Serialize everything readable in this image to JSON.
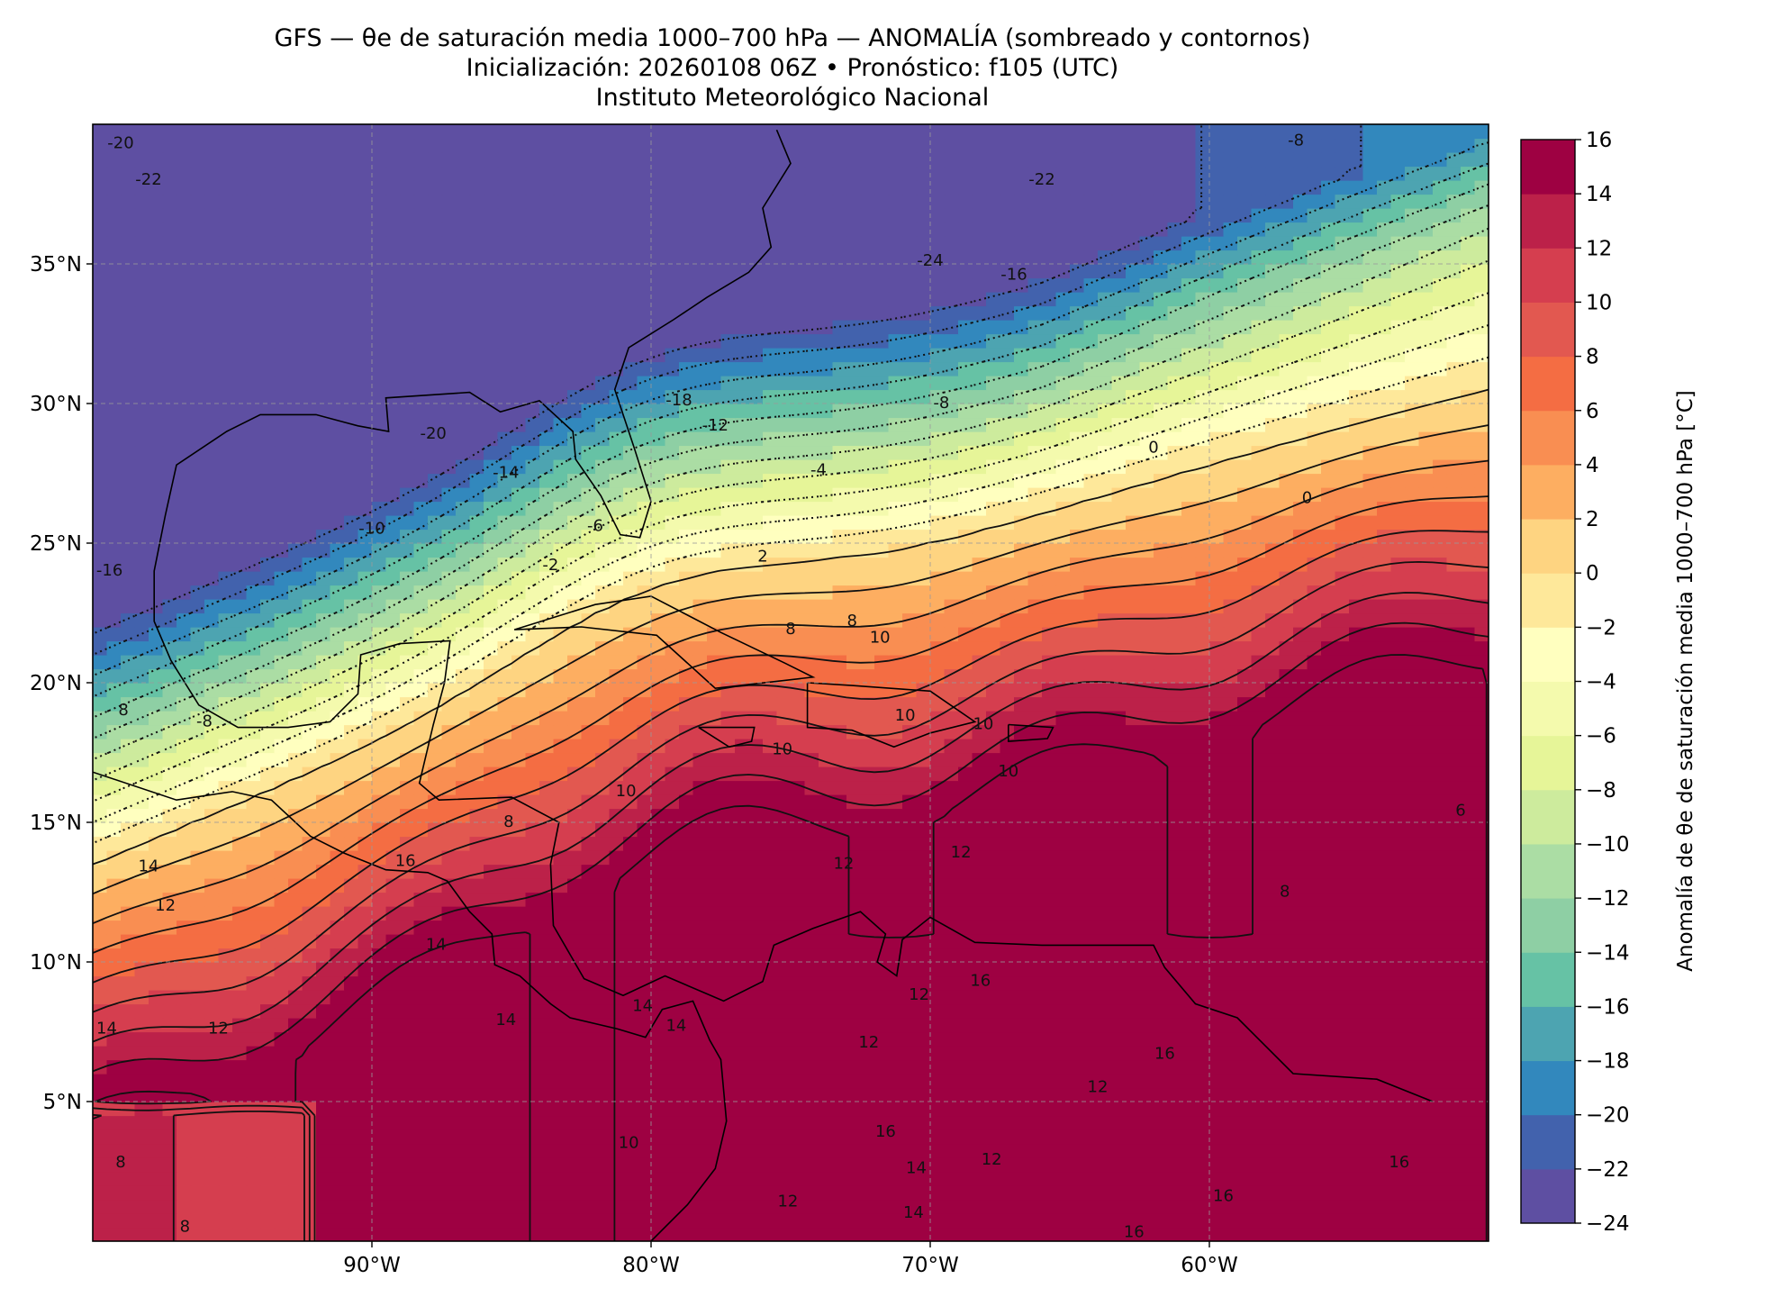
{
  "title": {
    "line1": "GFS — θe de saturación media 1000–700 hPa — ANOMALÍA (sombreado y contornos)",
    "line2": "Inicialización: 20260108 06Z   •   Pronóstico: f105 (UTC)",
    "line3": "Instituto Meteorológico Nacional"
  },
  "map": {
    "lon_range": [
      -100,
      -50
    ],
    "lat_range": [
      0,
      40
    ],
    "lon_ticks": [
      {
        "value": -90,
        "label": "90°W"
      },
      {
        "value": -80,
        "label": "80°W"
      },
      {
        "value": -70,
        "label": "70°W"
      },
      {
        "value": -60,
        "label": "60°W"
      }
    ],
    "lat_ticks": [
      {
        "value": 35,
        "label": "35°N"
      },
      {
        "value": 30,
        "label": "30°N"
      },
      {
        "value": 25,
        "label": "25°N"
      },
      {
        "value": 20,
        "label": "20°N"
      },
      {
        "value": 15,
        "label": "15°N"
      },
      {
        "value": 10,
        "label": "10°N"
      },
      {
        "value": 5,
        "label": "5°N"
      }
    ],
    "gridlines": true
  },
  "colorbar": {
    "label": "Anomalía de θe de saturación media 1000–700 hPa [°C]",
    "min": -24,
    "max": 16,
    "step": 2,
    "tick_labels": [
      "16",
      "14",
      "12",
      "10",
      "8",
      "6",
      "4",
      "2",
      "0",
      "−2",
      "−4",
      "−6",
      "−8",
      "−10",
      "−12",
      "−14",
      "−16",
      "−18",
      "−20",
      "−22",
      "−24"
    ],
    "colors": [
      "#5e4fa2",
      "#4262ad",
      "#3288bd",
      "#4da4b1",
      "#66c2a5",
      "#8ecfa4",
      "#abdda4",
      "#cdeb9d",
      "#e6f598",
      "#f4faad",
      "#ffffbf",
      "#fee89a",
      "#fed481",
      "#fdae61",
      "#f98e52",
      "#f46d43",
      "#e25850",
      "#d53e4f",
      "#bc2149",
      "#9e0142"
    ]
  },
  "chart_data": {
    "type": "heatmap",
    "title": "GFS — θe de saturación media 1000–700 hPa — ANOMALÍA (sombreado y contornos)",
    "xlabel": "",
    "ylabel": "",
    "value_label": "Anomalía de θe de saturación media 1000–700 hPa [°C]",
    "xlim": [
      -100,
      -50
    ],
    "ylim": [
      0,
      40
    ],
    "color_range": [
      -24,
      16
    ],
    "contour_labels": [
      {
        "text": "-20",
        "lon": -99.0,
        "lat": 39.3
      },
      {
        "text": "-22",
        "lon": -98.0,
        "lat": 38.0
      },
      {
        "text": "-8",
        "lon": -56.9,
        "lat": 39.4
      },
      {
        "text": "-22",
        "lon": -66.0,
        "lat": 38.0
      },
      {
        "text": "-24",
        "lon": -70.0,
        "lat": 35.1
      },
      {
        "text": "-16",
        "lon": -67.0,
        "lat": 34.6
      },
      {
        "text": "-18",
        "lon": -79.0,
        "lat": 30.1
      },
      {
        "text": "-8",
        "lon": -69.6,
        "lat": 30.0
      },
      {
        "text": "-12",
        "lon": -77.7,
        "lat": 29.2
      },
      {
        "text": "-20",
        "lon": -87.8,
        "lat": 28.9
      },
      {
        "text": "-14",
        "lon": -85.2,
        "lat": 27.5
      },
      {
        "text": "-4",
        "lon": -74.0,
        "lat": 27.6
      },
      {
        "text": "0",
        "lon": -62.0,
        "lat": 28.4
      },
      {
        "text": "0",
        "lon": -56.5,
        "lat": 26.6
      },
      {
        "text": "-10",
        "lon": -90.0,
        "lat": 25.5
      },
      {
        "text": "-6",
        "lon": -82.0,
        "lat": 25.6
      },
      {
        "text": "-2",
        "lon": -83.6,
        "lat": 24.2
      },
      {
        "text": "2",
        "lon": -76.0,
        "lat": 24.5
      },
      {
        "text": "-16",
        "lon": -99.4,
        "lat": 24.0
      },
      {
        "text": "8",
        "lon": -75.0,
        "lat": 21.9
      },
      {
        "text": "8",
        "lon": -72.8,
        "lat": 22.2
      },
      {
        "text": "10",
        "lon": -71.8,
        "lat": 21.6
      },
      {
        "text": "-8",
        "lon": -96.0,
        "lat": 18.6
      },
      {
        "text": "8",
        "lon": -98.9,
        "lat": 19.0
      },
      {
        "text": "10",
        "lon": -70.9,
        "lat": 18.8
      },
      {
        "text": "10",
        "lon": -68.1,
        "lat": 18.5
      },
      {
        "text": "10",
        "lon": -75.3,
        "lat": 17.6
      },
      {
        "text": "10",
        "lon": -67.2,
        "lat": 16.8
      },
      {
        "text": "10",
        "lon": -80.9,
        "lat": 16.1
      },
      {
        "text": "8",
        "lon": -85.1,
        "lat": 15.0
      },
      {
        "text": "6",
        "lon": -51.0,
        "lat": 15.4
      },
      {
        "text": "16",
        "lon": -88.8,
        "lat": 13.6
      },
      {
        "text": "14",
        "lon": -98.0,
        "lat": 13.4
      },
      {
        "text": "12",
        "lon": -73.1,
        "lat": 13.5
      },
      {
        "text": "12",
        "lon": -68.9,
        "lat": 13.9
      },
      {
        "text": "8",
        "lon": -57.3,
        "lat": 12.5
      },
      {
        "text": "12",
        "lon": -97.4,
        "lat": 12.0
      },
      {
        "text": "14",
        "lon": -87.7,
        "lat": 10.6
      },
      {
        "text": "12",
        "lon": -70.4,
        "lat": 8.8
      },
      {
        "text": "16",
        "lon": -68.2,
        "lat": 9.3
      },
      {
        "text": "14",
        "lon": -85.2,
        "lat": 7.9
      },
      {
        "text": "14",
        "lon": -80.3,
        "lat": 8.4
      },
      {
        "text": "14",
        "lon": -79.1,
        "lat": 7.7
      },
      {
        "text": "14",
        "lon": -99.5,
        "lat": 7.6
      },
      {
        "text": "12",
        "lon": -95.5,
        "lat": 7.6
      },
      {
        "text": "12",
        "lon": -72.2,
        "lat": 7.1
      },
      {
        "text": "16",
        "lon": -61.6,
        "lat": 6.7
      },
      {
        "text": "12",
        "lon": -64.0,
        "lat": 5.5
      },
      {
        "text": "16",
        "lon": -71.6,
        "lat": 3.9
      },
      {
        "text": "10",
        "lon": -80.8,
        "lat": 3.5
      },
      {
        "text": "8",
        "lon": -99.0,
        "lat": 2.8
      },
      {
        "text": "12",
        "lon": -67.8,
        "lat": 2.9
      },
      {
        "text": "14",
        "lon": -70.5,
        "lat": 2.6
      },
      {
        "text": "16",
        "lon": -53.2,
        "lat": 2.8
      },
      {
        "text": "12",
        "lon": -75.1,
        "lat": 1.4
      },
      {
        "text": "16",
        "lon": -59.5,
        "lat": 1.6
      },
      {
        "text": "14",
        "lon": -70.6,
        "lat": 1.0
      },
      {
        "text": "8",
        "lon": -96.7,
        "lat": 0.5
      },
      {
        "text": "16",
        "lon": -62.7,
        "lat": 0.3
      }
    ]
  }
}
